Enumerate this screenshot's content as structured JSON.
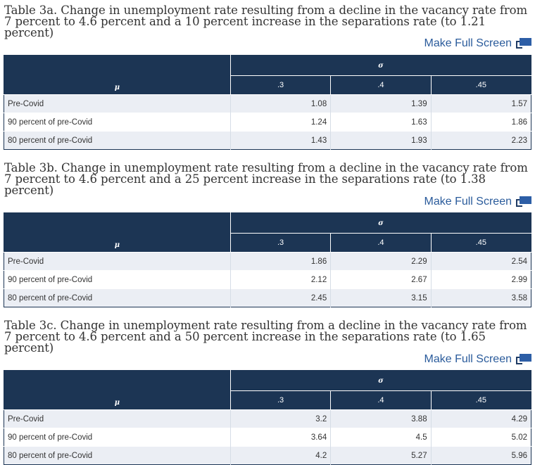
{
  "fullscreen_label": "Make Full Screen",
  "mu_symbol": "μ",
  "sigma_symbol": "σ",
  "columns": [
    ".3",
    ".4",
    ".45"
  ],
  "tables": [
    {
      "title": "Table 3a. Change in unemployment rate resulting from a decline in the vacancy rate from 7 percent to 4.6 percent and a 10 percent increase in the separations rate (to 1.21 percent)",
      "rows": [
        {
          "label": "Pre-Covid",
          "values": [
            "1.08",
            "1.39",
            "1.57"
          ]
        },
        {
          "label": "90 percent of pre-Covid",
          "values": [
            "1.24",
            "1.63",
            "1.86"
          ]
        },
        {
          "label": "80 percent of pre-Covid",
          "values": [
            "1.43",
            "1.93",
            "2.23"
          ]
        }
      ]
    },
    {
      "title": "Table 3b. Change in unemployment rate resulting from a decline in the vacancy rate from 7 percent to 4.6 percent and a 25 percent increase in the separations rate (to 1.38 percent)",
      "rows": [
        {
          "label": "Pre-Covid",
          "values": [
            "1.86",
            "2.29",
            "2.54"
          ]
        },
        {
          "label": "90 percent of pre-Covid",
          "values": [
            "2.12",
            "2.67",
            "2.99"
          ]
        },
        {
          "label": "80 percent of pre-Covid",
          "values": [
            "2.45",
            "3.15",
            "3.58"
          ]
        }
      ]
    },
    {
      "title": "Table 3c. Change in unemployment rate resulting from a decline in the vacancy rate from 7 percent to 4.6 percent and a 50 percent increase in the separations rate (to 1.65 percent)",
      "rows": [
        {
          "label": "Pre-Covid",
          "values": [
            "3.2",
            "3.88",
            "4.29"
          ]
        },
        {
          "label": "90 percent of pre-Covid",
          "values": [
            "3.64",
            "4.5",
            "5.02"
          ]
        },
        {
          "label": "80 percent of pre-Covid",
          "values": [
            "4.2",
            "5.27",
            "5.96"
          ]
        }
      ]
    }
  ]
}
